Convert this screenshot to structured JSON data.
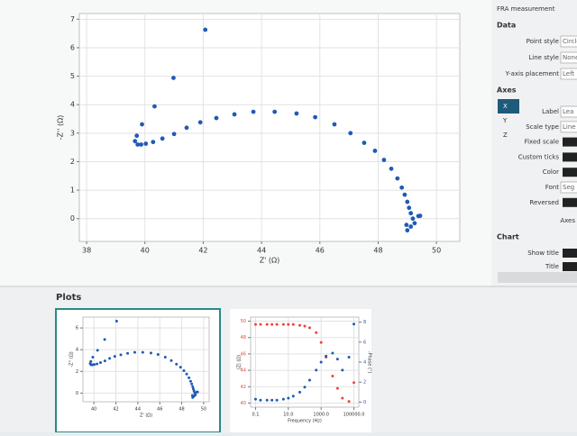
{
  "chart_data": [
    {
      "type": "scatter",
      "xlabel": "Z' (Ω)",
      "ylabel": "-Z'' (Ω)",
      "x": [
        42.07,
        40.98,
        40.33,
        39.9,
        39.72,
        39.66,
        39.75,
        39.87,
        40.03,
        40.28,
        40.6,
        41.0,
        41.43,
        41.9,
        42.45,
        43.07,
        43.72,
        44.45,
        45.2,
        45.84,
        46.5,
        47.05,
        47.52,
        47.89,
        48.2,
        48.45,
        48.66,
        48.81,
        48.91,
        49.0,
        49.06,
        49.12,
        49.19,
        49.25,
        49.38,
        49.12,
        49.0,
        48.97,
        49.44
      ],
      "series": [
        {
          "color": "#1f5bb5",
          "values": [
            6.63,
            4.94,
            3.94,
            3.31,
            2.91,
            2.72,
            2.6,
            2.6,
            2.63,
            2.69,
            2.81,
            2.97,
            3.19,
            3.38,
            3.53,
            3.66,
            3.75,
            3.75,
            3.69,
            3.56,
            3.31,
            3.0,
            2.66,
            2.38,
            2.06,
            1.75,
            1.41,
            1.09,
            0.84,
            0.59,
            0.38,
            0.19,
            0.0,
            -0.16,
            0.09,
            -0.28,
            -0.41,
            -0.22,
            0.1
          ]
        }
      ],
      "xlim": [
        37.75,
        50.8
      ],
      "ylim": [
        -0.8,
        7.2
      ],
      "xticks": [
        38,
        40,
        42,
        44,
        46,
        48,
        50
      ],
      "yticks": [
        0,
        1,
        2,
        3,
        4,
        5,
        6,
        7
      ],
      "grid": true
    },
    {
      "type": "scatter",
      "xlabel": "Z' (Ω)",
      "ylabel": "-Z'' (Ω)",
      "xlim": [
        39,
        50.5
      ],
      "ylim": [
        -0.8,
        7
      ],
      "xticks": [
        40,
        42,
        44,
        46,
        48,
        50
      ],
      "yticks": [
        0,
        2,
        4,
        6
      ],
      "grid": true
    },
    {
      "type": "scatter",
      "xlabel": "Frequency (Hz)",
      "ylabel": "|Z| (Ω)",
      "y2label": "-Phase (°)",
      "xlog": true,
      "x": [
        0.1,
        0.2,
        0.5,
        1,
        2,
        5,
        10,
        20,
        50,
        100,
        200,
        500,
        1000,
        2000,
        5000,
        10000,
        20000,
        50000,
        100000
      ],
      "series": [
        {
          "color": "#e8473f",
          "values": [
            49.6,
            49.6,
            49.6,
            49.6,
            49.6,
            49.6,
            49.6,
            49.6,
            49.5,
            49.4,
            49.2,
            48.6,
            47.4,
            45.6,
            43.3,
            41.8,
            40.6,
            40.2,
            42.5
          ]
        },
        {
          "color": "#1f5bb5",
          "axis": "y2",
          "values": [
            0.3,
            0.2,
            0.2,
            0.2,
            0.2,
            0.3,
            0.4,
            0.6,
            1.0,
            1.5,
            2.2,
            3.2,
            4.0,
            4.6,
            4.9,
            4.3,
            3.2,
            4.5,
            7.8
          ]
        }
      ],
      "xlim": [
        0.05,
        200000
      ],
      "ylim": [
        39.5,
        50.5
      ],
      "y2lim": [
        -0.5,
        8.5
      ],
      "xticks": [
        0.1,
        {
          "value": 10,
          "label": "10.0"
        },
        {
          "value": 1000,
          "label": "1000.0"
        },
        {
          "value": 100000,
          "label": "100000.0"
        }
      ],
      "yticks": [
        40,
        42,
        44,
        46,
        48,
        50
      ],
      "y2ticks": [
        0,
        2,
        4,
        6,
        8
      ],
      "grid": true
    }
  ],
  "side_panel": {
    "header": "FRA measurement",
    "data_title": "Data",
    "data_rows": [
      {
        "label": "Point style",
        "value": "Circle"
      },
      {
        "label": "Line style",
        "value": "None"
      },
      {
        "label": "Y-axis placement",
        "value": "Left"
      }
    ],
    "axes_title": "Axes",
    "axis_tabs": [
      "X",
      "Y",
      "Z"
    ],
    "axis_rows": [
      {
        "label": "Label",
        "value": "Lea"
      },
      {
        "label": "Scale type",
        "value": "Line"
      },
      {
        "label": "Fixed scale"
      },
      {
        "label": "Custom ticks"
      },
      {
        "label": "Color"
      },
      {
        "label": "Font",
        "value": "Seg"
      },
      {
        "label": "Reversed"
      }
    ],
    "axes_link": "Axes",
    "chart_title": "Chart",
    "chart_rows": [
      {
        "label": "Show title"
      },
      {
        "label": "Title"
      }
    ]
  },
  "plots_title": "Plots"
}
